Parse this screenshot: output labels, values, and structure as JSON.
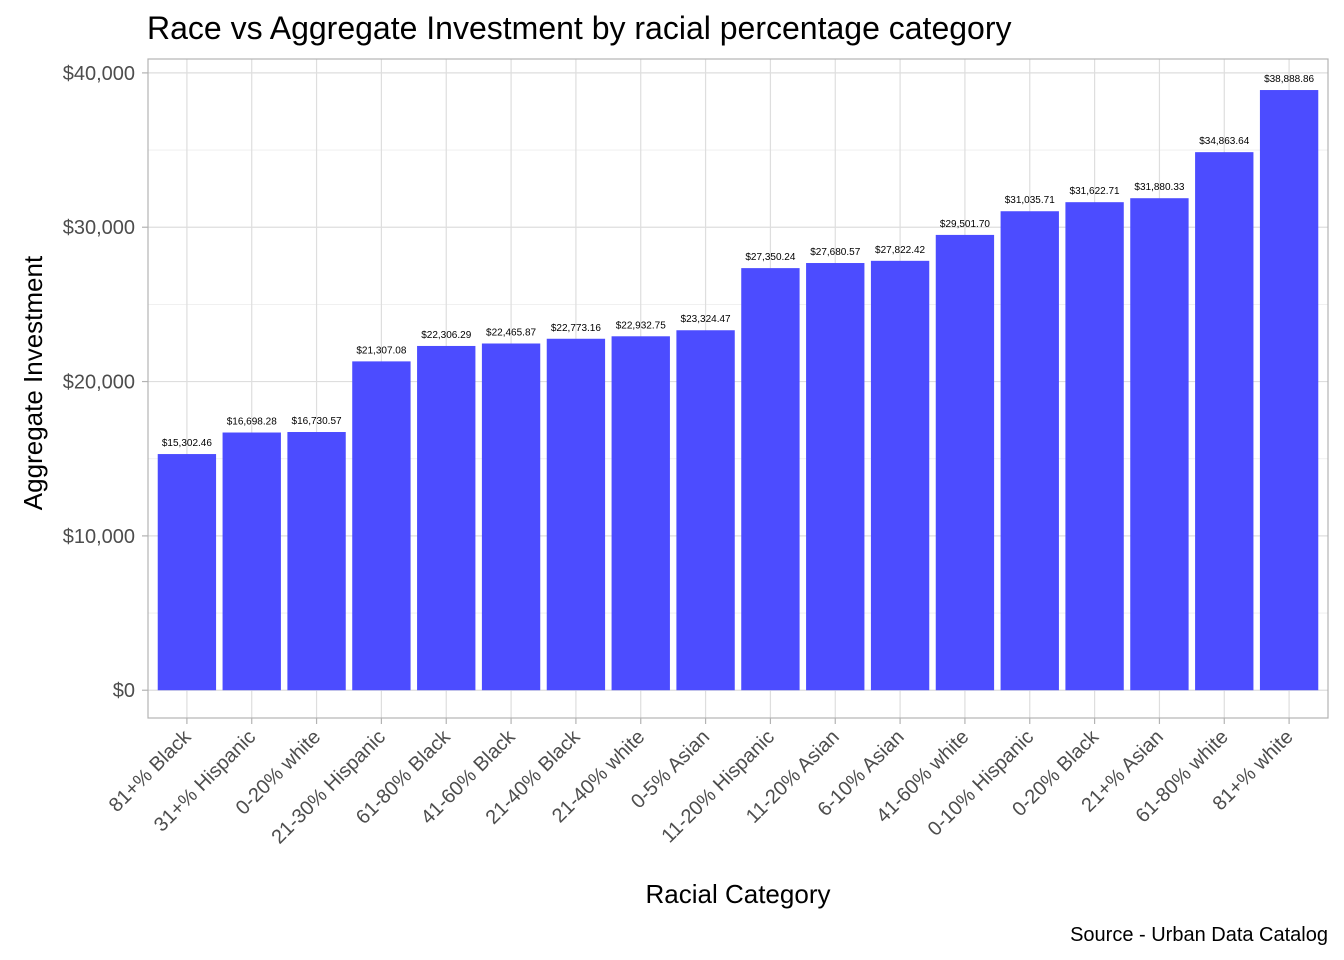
{
  "chart_data": {
    "type": "bar",
    "title": "Race vs Aggregate Investment by racial percentage category",
    "xlabel": "Racial Category",
    "ylabel": "Aggregate Investment",
    "caption": "Source - Urban Data Catalog",
    "bar_color": "#4C4CFF",
    "grid": true,
    "ylim": [
      -1800,
      40900
    ],
    "y_ticks": [
      0,
      10000,
      20000,
      30000,
      40000
    ],
    "y_tick_labels": [
      "$0",
      "$10,000",
      "$20,000",
      "$30,000",
      "$40,000"
    ],
    "categories": [
      "81+% Black",
      "31+% Hispanic",
      "0-20% white",
      "21-30% Hispanic",
      "61-80% Black",
      "41-60% Black",
      "21-40% Black",
      "21-40% white",
      "0-5% Asian",
      "11-20% Hispanic",
      "11-20% Asian",
      "6-10% Asian",
      "41-60% white",
      "0-10% Hispanic",
      "0-20% Black",
      "21+% Asian",
      "61-80% white",
      "81+% white"
    ],
    "values": [
      15302.46,
      16698.28,
      16730.57,
      21307.08,
      22306.29,
      22465.87,
      22773.16,
      22932.75,
      23324.47,
      27350.24,
      27680.57,
      27822.42,
      29501.7,
      31035.71,
      31622.71,
      31880.33,
      34863.64,
      38888.86
    ],
    "data_labels": [
      "$15,302.46",
      "$16,698.28",
      "$16,730.57",
      "$21,307.08",
      "$22,306.29",
      "$22,465.87",
      "$22,773.16",
      "$22,932.75",
      "$23,324.47",
      "$27,350.24",
      "$27,680.57",
      "$27,822.42",
      "$29,501.70",
      "$31,035.71",
      "$31,622.71",
      "$31,880.33",
      "$34,863.64",
      "$38,888.86"
    ]
  }
}
